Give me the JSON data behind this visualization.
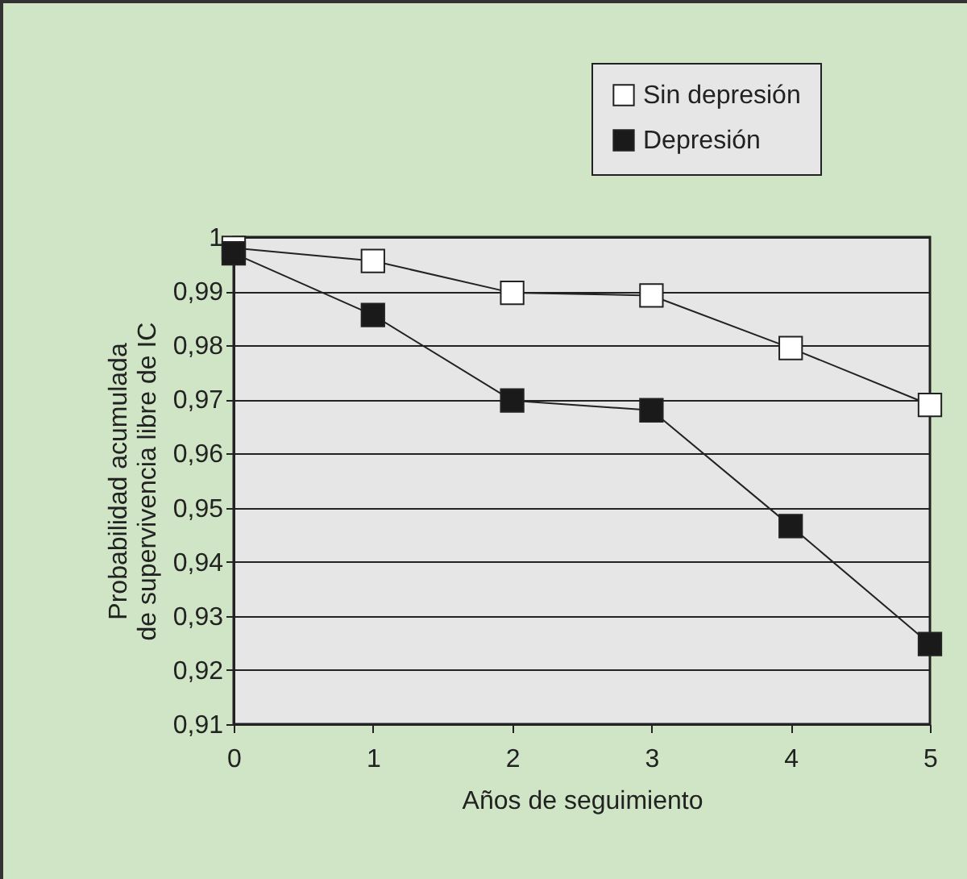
{
  "chart_data": {
    "type": "line",
    "xlabel": "Años de seguimiento",
    "ylabel": "Probabilidad acumulada\nde supervivencia libre de IC",
    "x": [
      0,
      1,
      2,
      3,
      4,
      5
    ],
    "series": [
      {
        "name": "Sin depresión",
        "color": "#ffffff",
        "values": [
          0.998,
          0.9956,
          0.9897,
          0.9892,
          0.9795,
          0.969
        ]
      },
      {
        "name": "Depresión",
        "color": "#1a1a1a",
        "values": [
          0.997,
          0.9856,
          0.9698,
          0.968,
          0.9466,
          0.9248
        ]
      }
    ],
    "xlim": [
      0,
      5
    ],
    "xticks": [
      0,
      1,
      2,
      3,
      4,
      5
    ],
    "ylim": [
      0.91,
      1
    ],
    "yticks": [
      {
        "value": 0.91,
        "label": "0,91"
      },
      {
        "value": 0.92,
        "label": "0,92"
      },
      {
        "value": 0.93,
        "label": "0,93"
      },
      {
        "value": 0.94,
        "label": "0,94"
      },
      {
        "value": 0.95,
        "label": "0,95"
      },
      {
        "value": 0.96,
        "label": "0,96"
      },
      {
        "value": 0.97,
        "label": "0,97"
      },
      {
        "value": 0.98,
        "label": "0,98"
      },
      {
        "value": 0.99,
        "label": "0,99"
      },
      {
        "value": 1,
        "label": "1"
      }
    ],
    "grid": "y",
    "legend": "top right",
    "marker": "square",
    "line_style": "solid"
  }
}
